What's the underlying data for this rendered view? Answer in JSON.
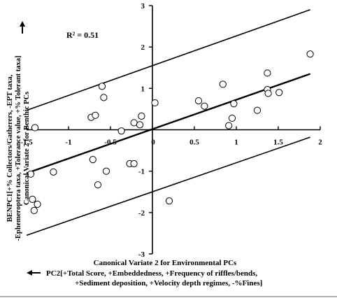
{
  "chart_data": {
    "type": "scatter",
    "annotation": "R² = 0.51",
    "x_axis": {
      "title": "Canonical Variate 2 for Environmental PCs",
      "pc_label_lines": [
        "PC2[+Total Score, +Embeddedness, +Frequency of riffles/bends,",
        "+Sediment deposition, +Velocity depth regimes, -%Fines]"
      ],
      "range": [
        -1.5,
        2
      ],
      "ticks": [
        -1.5,
        -1,
        -0.5,
        0,
        0.5,
        1,
        1.5,
        2
      ],
      "tick_labels": [
        "-1.5",
        "-1",
        "-0.5",
        "0",
        "0.5",
        "1",
        "1.5",
        "2"
      ]
    },
    "y_axis": {
      "title": "Canonical Variate 2 for Benthic PCs",
      "pc_label_lines": [
        "BENPC1[+% Collectors/Gatherers, -EPT taxa,",
        "-Ephemeroptera taxa, +Tolerance value, +% Tolerant taxa]"
      ],
      "range": [
        -3,
        3
      ],
      "ticks": [
        -3,
        -2,
        -1,
        0,
        1,
        2,
        3
      ],
      "tick_labels": [
        "-3",
        "-2",
        "-1",
        "0",
        "1",
        "2",
        "3"
      ]
    },
    "points": [
      {
        "x": -1.4,
        "y": 0.05
      },
      {
        "x": -1.45,
        "y": -1.07
      },
      {
        "x": -1.43,
        "y": -1.68
      },
      {
        "x": -1.41,
        "y": -1.95
      },
      {
        "x": -1.37,
        "y": -1.8
      },
      {
        "x": -1.18,
        "y": -1.02
      },
      {
        "x": -0.73,
        "y": 0.3
      },
      {
        "x": -0.68,
        "y": 0.35
      },
      {
        "x": -0.71,
        "y": -0.72
      },
      {
        "x": -0.65,
        "y": -1.33
      },
      {
        "x": -0.6,
        "y": 1.05
      },
      {
        "x": -0.58,
        "y": 0.78
      },
      {
        "x": -0.55,
        "y": -1.0
      },
      {
        "x": -0.37,
        "y": -0.03
      },
      {
        "x": -0.27,
        "y": -0.82
      },
      {
        "x": -0.22,
        "y": 0.17
      },
      {
        "x": -0.22,
        "y": -0.82
      },
      {
        "x": -0.15,
        "y": 0.12
      },
      {
        "x": -0.13,
        "y": 0.33
      },
      {
        "x": 0.03,
        "y": 0.65
      },
      {
        "x": 0.2,
        "y": -1.72
      },
      {
        "x": 0.55,
        "y": 0.7
      },
      {
        "x": 0.62,
        "y": 0.57
      },
      {
        "x": 0.84,
        "y": 1.1
      },
      {
        "x": 0.91,
        "y": 0.1
      },
      {
        "x": 0.95,
        "y": 0.28
      },
      {
        "x": 0.97,
        "y": 0.63
      },
      {
        "x": 1.25,
        "y": 0.47
      },
      {
        "x": 1.37,
        "y": 1.37
      },
      {
        "x": 1.37,
        "y": 0.97
      },
      {
        "x": 1.38,
        "y": 0.88
      },
      {
        "x": 1.51,
        "y": 0.9
      },
      {
        "x": 1.88,
        "y": 1.83
      }
    ],
    "regression_line": {
      "x": [
        -1.5,
        1.88
      ],
      "y": [
        -1.05,
        1.35
      ]
    },
    "upper_band": {
      "x": [
        -1.5,
        1.88
      ],
      "y": [
        0.47,
        2.9
      ]
    },
    "lower_band": {
      "x": [
        -1.5,
        1.88
      ],
      "y": [
        -2.55,
        -0.18
      ]
    },
    "grid": false,
    "legend": "none"
  },
  "icons": {
    "y_pc_arrow": "arrow-up-icon",
    "x_pc_arrow": "arrow-left-icon"
  }
}
